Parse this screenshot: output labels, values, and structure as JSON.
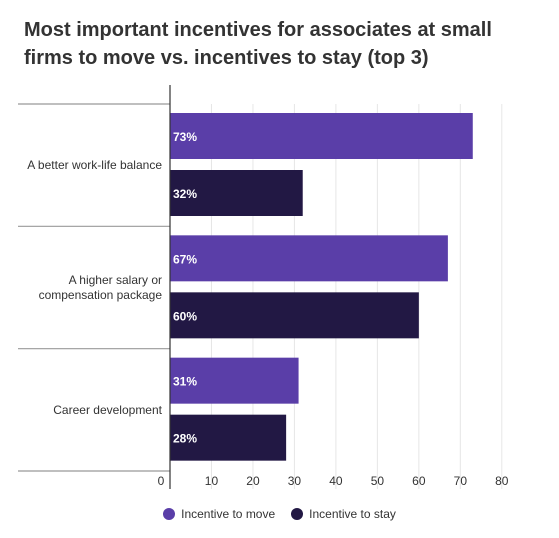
{
  "chart_data": {
    "type": "bar",
    "orientation": "horizontal",
    "title": "Most important incentives for associates at small firms to move vs. incentives to stay (top 3)",
    "categories": [
      [
        "A better work-life balance"
      ],
      [
        "A higher salary or",
        "compensation package"
      ],
      [
        "Career development"
      ]
    ],
    "series": [
      {
        "name": "Incentive to move",
        "values": [
          73,
          67,
          31
        ],
        "labels": [
          "73%",
          "67%",
          "31%"
        ],
        "color": "#5a3ea8"
      },
      {
        "name": "Incentive to stay",
        "values": [
          32,
          60,
          28
        ],
        "labels": [
          "32%",
          "60%",
          "28%"
        ],
        "color": "#221844"
      }
    ],
    "xlim": [
      0,
      80
    ],
    "xticks": [
      "0",
      "10",
      "20",
      "30",
      "40",
      "50",
      "60",
      "70",
      "80"
    ],
    "grid": true,
    "legend_position": "bottom",
    "xlabel": "",
    "ylabel": ""
  }
}
